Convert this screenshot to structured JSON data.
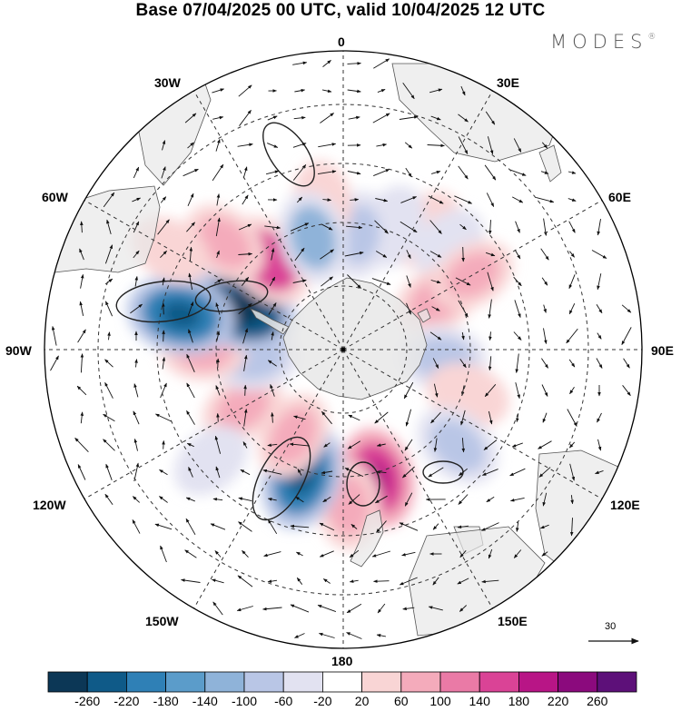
{
  "title": "Base 07/04/2025 00 UTC, valid 10/04/2025 12 UTC",
  "brand": {
    "name": "MODES",
    "mark": "®"
  },
  "map": {
    "projection": "south-polar-stereographic",
    "grid": "dashed",
    "land_color": "#e8e8e8",
    "longitude_labels": {
      "top": "0",
      "top_right": "30E",
      "right_upper": "60E",
      "right": "90E",
      "right_lower": "120E",
      "bottom_right": "150E",
      "bottom": "180",
      "bottom_left": "150W",
      "left_lower": "120W",
      "left": "90W",
      "left_upper": "60W",
      "top_left": "30W"
    },
    "anomaly_cells": [
      {
        "lon": 35,
        "lat": -46,
        "value": 48
      },
      {
        "lon": 22,
        "lat": -50,
        "value": -55
      },
      {
        "lon": 8,
        "lat": -55,
        "value": -70
      },
      {
        "lon": -8,
        "lat": -45,
        "value": 40
      },
      {
        "lon": 45,
        "lat": -45,
        "value": -30
      },
      {
        "lon": 62,
        "lat": -58,
        "value": 70
      },
      {
        "lon": 60,
        "lat": -45,
        "value": 65
      },
      {
        "lon": 95,
        "lat": -60,
        "value": -85
      },
      {
        "lon": 110,
        "lat": -50,
        "value": 55
      },
      {
        "lon": 130,
        "lat": -45,
        "value": -90
      },
      {
        "lon": 165,
        "lat": -50,
        "value": 150
      },
      {
        "lon": 178,
        "lat": -43,
        "value": 80
      },
      {
        "lon": -162,
        "lat": -50,
        "value": -200
      },
      {
        "lon": -150,
        "lat": -60,
        "value": 80
      },
      {
        "lon": -120,
        "lat": -55,
        "value": 60
      },
      {
        "lon": -130,
        "lat": -38,
        "value": -40
      },
      {
        "lon": -95,
        "lat": -63,
        "value": -100
      },
      {
        "lon": -90,
        "lat": -48,
        "value": 70
      },
      {
        "lon": -68,
        "lat": -57,
        "value": -230
      },
      {
        "lon": -78,
        "lat": -40,
        "value": -200
      },
      {
        "lon": -40,
        "lat": -55,
        "value": 140
      },
      {
        "lon": -48,
        "lat": -42,
        "value": 85
      },
      {
        "lon": -15,
        "lat": -55,
        "value": -110
      },
      {
        "lon": -60,
        "lat": -30,
        "value": 45
      }
    ],
    "reference_vector": {
      "value": "30"
    }
  },
  "colorbar": {
    "ticks": [
      "-260",
      "-220",
      "-180",
      "-140",
      "-100",
      "-60",
      "-20",
      "20",
      "60",
      "100",
      "140",
      "180",
      "220",
      "260"
    ],
    "colors": [
      "#0c3756",
      "#0f5a88",
      "#2f80b6",
      "#5b9cca",
      "#8fb3d9",
      "#b9c6e6",
      "#e2e2f1",
      "#ffffff",
      "#f9d5d5",
      "#f4abbb",
      "#ea7aa6",
      "#da4396",
      "#b81586",
      "#8b0a7d",
      "#5d1079"
    ]
  }
}
